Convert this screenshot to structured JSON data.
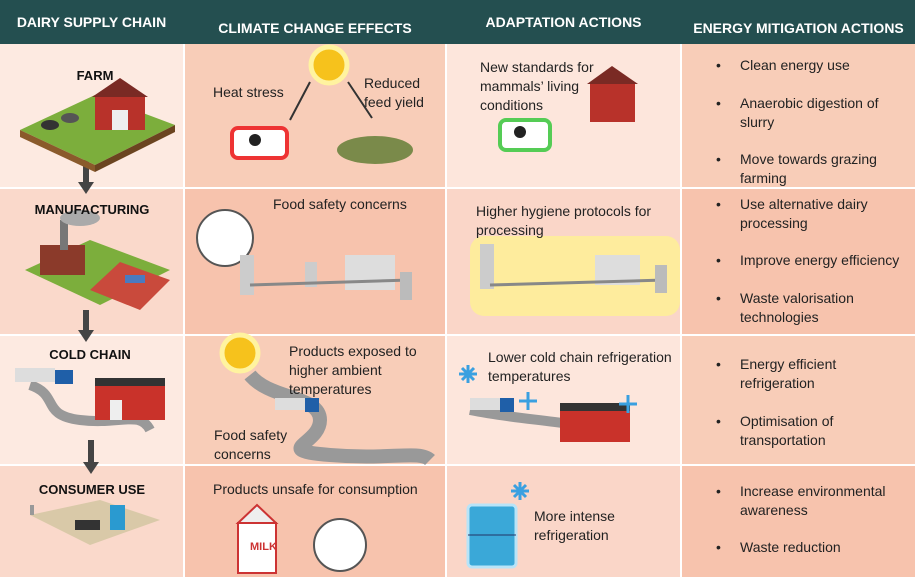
{
  "header": {
    "columns": [
      "DAIRY SUPPLY CHAIN",
      "CLIMATE CHANGE EFFECTS",
      "ADAPTATION ACTIONS",
      "ENERGY MITIGATION ACTIONS"
    ]
  },
  "rows": [
    {
      "stage": "FARM",
      "effects": [
        "Heat stress",
        "Reduced feed yield"
      ],
      "adaptation": "New standards for mammals’ living conditions",
      "mitigation": [
        "Clean energy use",
        "Anaerobic digestion of slurry",
        "Move towards grazing farming"
      ]
    },
    {
      "stage": "MANUFACTURING",
      "effects": [
        "Food safety concerns"
      ],
      "adaptation": "Higher hygiene protocols for processing",
      "mitigation": [
        "Use alternative dairy processing",
        "Improve energy efficiency",
        "Waste valorisation technologies"
      ]
    },
    {
      "stage": "COLD CHAIN",
      "effects": [
        "Products exposed to higher ambient temperatures",
        "Food safety concerns"
      ],
      "adaptation": "Lower cold chain refrigeration temperatures",
      "mitigation": [
        "Energy efficient refrigeration",
        "Optimisation of transportation"
      ]
    },
    {
      "stage": "CONSUMER USE",
      "effects": [
        "Products unsafe for consumption"
      ],
      "carton_label": "MILK",
      "adaptation": "More intense refrigeration",
      "mitigation": [
        "Increase environmental awareness",
        "Waste reduction"
      ]
    }
  ]
}
